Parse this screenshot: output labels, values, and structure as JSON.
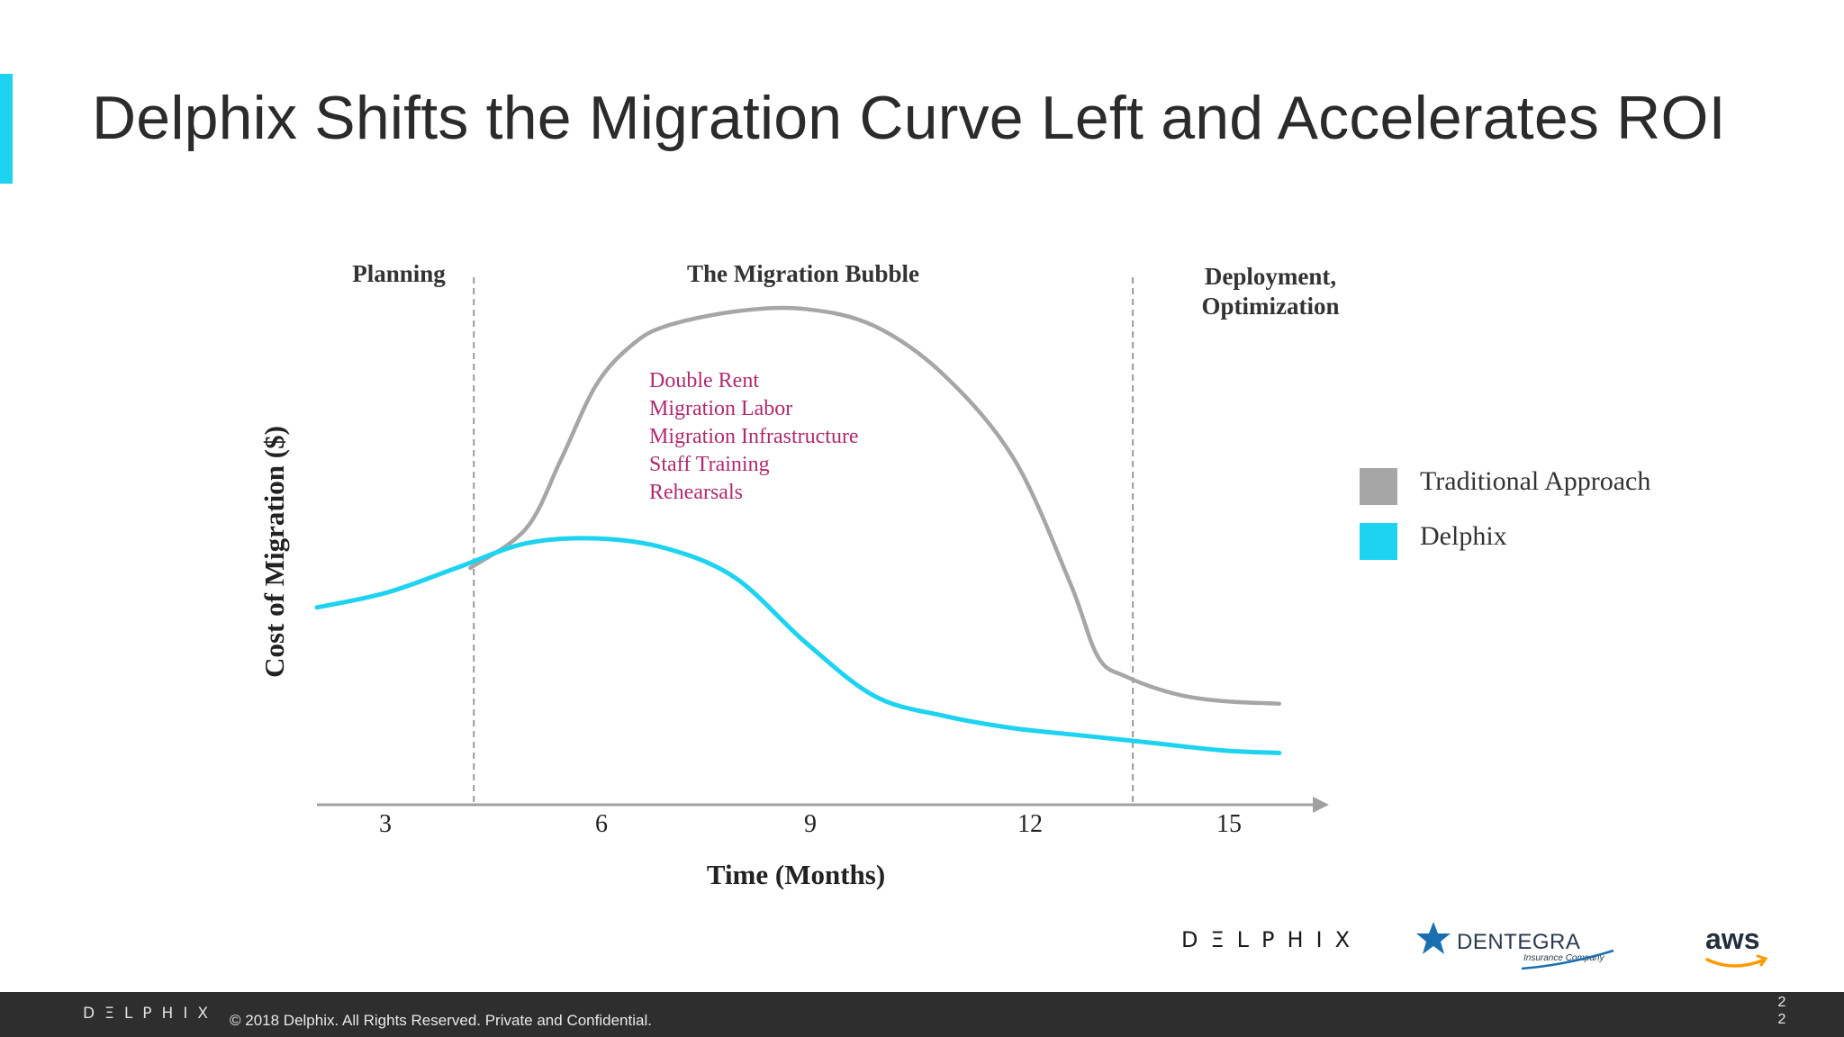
{
  "slide": {
    "title": "Delphix Shifts the Migration Curve Left and Accelerates ROI",
    "accent_color": "#1dd3f0"
  },
  "chart_data": {
    "type": "line",
    "title": "",
    "xlabel": "Time (Months)",
    "ylabel": "Cost of Migration ($)",
    "x_ticks": [
      3,
      6,
      9,
      12,
      15
    ],
    "xlim": [
      2,
      16.5
    ],
    "ylim": [
      0,
      100
    ],
    "y_ticks_shown": false,
    "grid": false,
    "legend_placement": "right",
    "phases": [
      {
        "label": "Planning"
      },
      {
        "label": "The Migration Bubble"
      },
      {
        "label_lines": [
          "Deployment,",
          "Optimization"
        ]
      }
    ],
    "phase_dividers_x": [
      4.25,
      13.7
    ],
    "annotation": {
      "lines": [
        "Double Rent",
        "Migration Labor",
        "Migration Infrastructure",
        "Staff Training",
        "Rehearsals"
      ],
      "color": "#b02a6e"
    },
    "series": [
      {
        "name": "Traditional Approach",
        "color": "#a6a6a6",
        "points": [
          [
            4.2,
            48
          ],
          [
            5.0,
            56
          ],
          [
            5.5,
            70
          ],
          [
            6.0,
            85
          ],
          [
            6.5,
            93
          ],
          [
            7.0,
            97
          ],
          [
            8.0,
            100
          ],
          [
            9.0,
            100.5
          ],
          [
            10.0,
            97
          ],
          [
            11.0,
            87
          ],
          [
            12.0,
            70
          ],
          [
            12.8,
            45
          ],
          [
            13.2,
            30
          ],
          [
            13.6,
            26
          ],
          [
            14.3,
            22.5
          ],
          [
            15.0,
            21
          ],
          [
            15.8,
            20.5
          ]
        ]
      },
      {
        "name": "Delphix",
        "color": "#1dd3f0",
        "points": [
          [
            2.0,
            40
          ],
          [
            3.0,
            43
          ],
          [
            4.0,
            48
          ],
          [
            5.0,
            53
          ],
          [
            6.0,
            54
          ],
          [
            7.0,
            52
          ],
          [
            8.0,
            46
          ],
          [
            9.0,
            33
          ],
          [
            10.0,
            22
          ],
          [
            11.0,
            18
          ],
          [
            12.0,
            15.5
          ],
          [
            13.0,
            14
          ],
          [
            14.0,
            12.5
          ],
          [
            15.0,
            11
          ],
          [
            15.8,
            10.5
          ]
        ]
      }
    ]
  },
  "logos": {
    "delphix": "DΞLPHIX",
    "dentegra": "DENTEGRA",
    "dentegra_sub": "Insurance Company",
    "aws": "aws"
  },
  "footer": {
    "logo_text": "DΞLPHIX",
    "copyright": "© 2018 Delphix. All Rights Reserved. Private and Confidential.",
    "page_number": "22",
    "background": "#2e2e2e"
  }
}
